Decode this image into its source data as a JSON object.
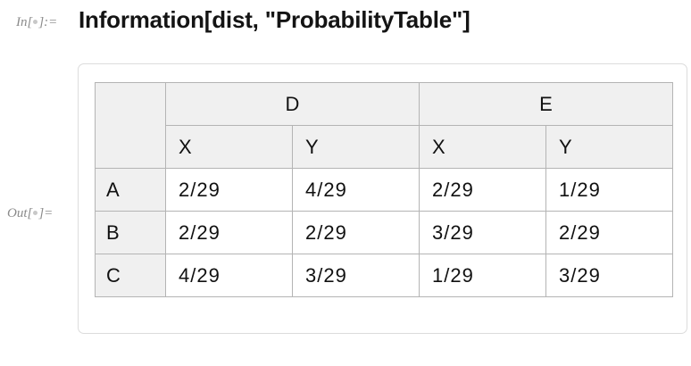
{
  "input": {
    "label": "In[",
    "label_end": "]:=",
    "code": "Information[dist, \"ProbabilityTable\"]"
  },
  "output": {
    "label": "Out[",
    "label_end": "]="
  },
  "table": {
    "groups": [
      "D",
      "E"
    ],
    "subcolumns": [
      "X",
      "Y",
      "X",
      "Y"
    ],
    "rows": [
      {
        "label": "A",
        "values": [
          "2/29",
          "4/29",
          "2/29",
          "1/29"
        ]
      },
      {
        "label": "B",
        "values": [
          "2/29",
          "2/29",
          "3/29",
          "2/29"
        ]
      },
      {
        "label": "C",
        "values": [
          "4/29",
          "3/29",
          "1/29",
          "3/29"
        ]
      }
    ]
  }
}
